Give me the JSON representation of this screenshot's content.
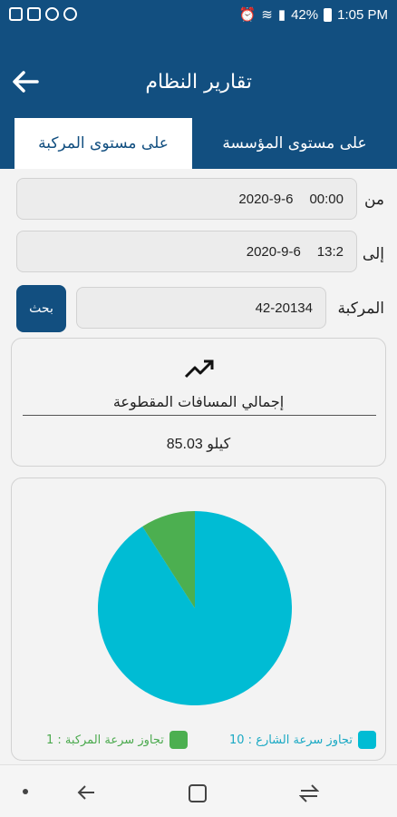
{
  "status": {
    "battery": "42%",
    "time": "1:05 PM"
  },
  "header": {
    "title": "تقارير النظام"
  },
  "tabs": [
    {
      "label": "على مستوى المؤسسة"
    },
    {
      "label": "على مستوى المركبة"
    }
  ],
  "form": {
    "from": {
      "label": "من",
      "date": "2020-9-6",
      "time": "00:00"
    },
    "to": {
      "label": "إلى",
      "date": "2020-9-6",
      "time": "13:2"
    },
    "vehicle": {
      "label": "المركبة",
      "value": "42-20134"
    },
    "search_label": "بحث"
  },
  "distance_card": {
    "title": "إجمالي المسافات المقطوعة",
    "value": "85.03 كيلو"
  },
  "chart_data": {
    "type": "pie",
    "categories": [
      "تجاوز سرعة الشارع",
      "تجاوز سرعة المركبة"
    ],
    "values": [
      10,
      1
    ],
    "legend_labels": [
      "تجاوز سرعة الشارع : 10",
      "تجاوز سرعة المركبة : 1"
    ],
    "colors": [
      "#00bcd4",
      "#4caf50"
    ],
    "legend_position": "bottom"
  }
}
